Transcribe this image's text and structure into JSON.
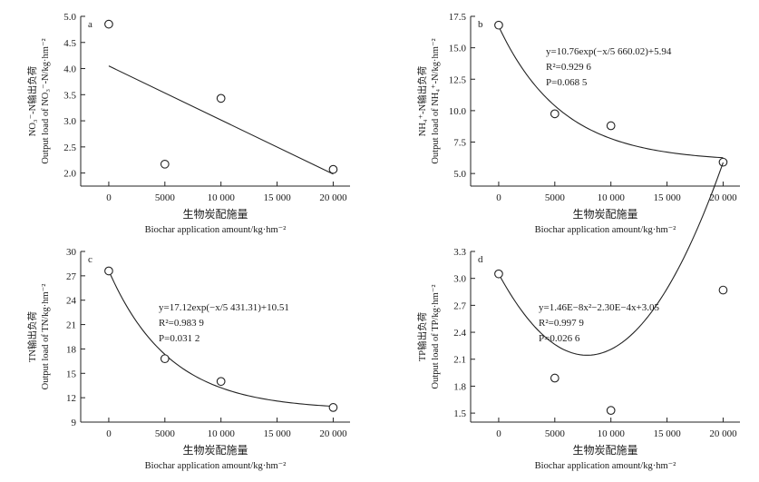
{
  "chart_data": [
    {
      "type": "scatter",
      "panel_label": "a",
      "x": [
        0,
        5000,
        10000,
        20000
      ],
      "y": [
        4.85,
        2.17,
        3.43,
        2.07
      ],
      "fit": {
        "kind": "linear",
        "start": [
          0,
          4.05
        ],
        "end": [
          20000,
          1.98
        ]
      },
      "xlim": [
        -2500,
        21500
      ],
      "ylim": [
        1.75,
        5.0
      ],
      "xticks": [
        0,
        5000,
        10000,
        15000,
        20000
      ],
      "xtick_labels": [
        "0",
        "5000",
        "10 000",
        "15 000",
        "20 000"
      ],
      "yticks": [
        2.0,
        2.5,
        3.0,
        3.5,
        4.0,
        4.5,
        5.0
      ],
      "ytick_labels": [
        "2.0",
        "2.5",
        "3.0",
        "3.5",
        "4.0",
        "4.5",
        "5.0"
      ],
      "ylabel_cn": "NO₃⁻-N输出负荷",
      "ylabel_en": "Output load of NO₃⁻-N/kg·hm⁻²",
      "xlabel_cn": "生物炭配施量",
      "xlabel_en": "Biochar application amount/kg·hm⁻²",
      "annotations": []
    },
    {
      "type": "scatter",
      "panel_label": "b",
      "x": [
        0,
        5000,
        10000,
        20000
      ],
      "y": [
        16.8,
        9.75,
        8.8,
        5.9
      ],
      "fit": {
        "kind": "exp",
        "a": 10.76,
        "b": 5660.02,
        "c": 5.94
      },
      "xlim": [
        -2500,
        21500
      ],
      "ylim": [
        4.0,
        17.5
      ],
      "xticks": [
        0,
        5000,
        10000,
        15000,
        20000
      ],
      "xtick_labels": [
        "0",
        "5000",
        "10 000",
        "15 000",
        "20 000"
      ],
      "yticks": [
        5.0,
        7.5,
        10.0,
        12.5,
        15.0,
        17.5
      ],
      "ytick_labels": [
        "5.0",
        "7.5",
        "10.0",
        "12.5",
        "15.0",
        "17.5"
      ],
      "ylabel_cn": "NH₄⁺-N输出负荷",
      "ylabel_en": "Output load of NH₄⁺-N/kg·hm⁻²",
      "xlabel_cn": "生物炭配施量",
      "xlabel_en": "Biochar application amount/kg·hm⁻²",
      "annotations": [
        "y=10.76exp(−x/5 660.02)+5.94",
        "R²=0.929 6",
        "P=0.068 5"
      ]
    },
    {
      "type": "scatter",
      "panel_label": "c",
      "x": [
        0,
        5000,
        10000,
        20000
      ],
      "y": [
        27.6,
        16.8,
        14.0,
        10.8
      ],
      "fit": {
        "kind": "exp",
        "a": 17.12,
        "b": 5431.31,
        "c": 10.51
      },
      "xlim": [
        -2500,
        21500
      ],
      "ylim": [
        9,
        30
      ],
      "xticks": [
        0,
        5000,
        10000,
        15000,
        20000
      ],
      "xtick_labels": [
        "0",
        "5000",
        "10 000",
        "15 000",
        "20 000"
      ],
      "yticks": [
        9,
        12,
        15,
        18,
        21,
        24,
        27,
        30
      ],
      "ytick_labels": [
        "9",
        "12",
        "15",
        "18",
        "21",
        "24",
        "27",
        "30"
      ],
      "ylabel_cn": "TN输出负荷",
      "ylabel_en": "Output load of TN/kg·hm⁻²",
      "xlabel_cn": "生物炭配施量",
      "xlabel_en": "Biochar application amount/kg·hm⁻²",
      "annotations": [
        "y=17.12exp(−x/5 431.31)+10.51",
        "R²=0.983 9",
        "P=0.031 2"
      ]
    },
    {
      "type": "scatter",
      "panel_label": "d",
      "x": [
        0,
        5000,
        10000,
        20000
      ],
      "y": [
        3.05,
        1.89,
        1.53,
        2.87
      ],
      "fit": {
        "kind": "quadratic",
        "a": 1.46e-08,
        "b": -0.00023,
        "c": 3.05
      },
      "xlim": [
        -2500,
        21500
      ],
      "ylim": [
        1.4,
        3.3
      ],
      "xticks": [
        0,
        5000,
        10000,
        15000,
        20000
      ],
      "xtick_labels": [
        "0",
        "5000",
        "10 000",
        "15 000",
        "20 000"
      ],
      "yticks": [
        1.5,
        1.8,
        2.1,
        2.4,
        2.7,
        3.0,
        3.3
      ],
      "ytick_labels": [
        "1.5",
        "1.8",
        "2.1",
        "2.4",
        "2.7",
        "3.0",
        "3.3"
      ],
      "ylabel_cn": "TP输出负荷",
      "ylabel_en": "Output load of TP/kg·hm⁻²",
      "xlabel_cn": "生物炭配施量",
      "xlabel_en": "Biochar application amount/kg·hm⁻²",
      "annotations": [
        "y=1.46E−8x²−2.30E−4x+3.05",
        "R²=0.997 9",
        "P=0.026 6"
      ]
    }
  ]
}
